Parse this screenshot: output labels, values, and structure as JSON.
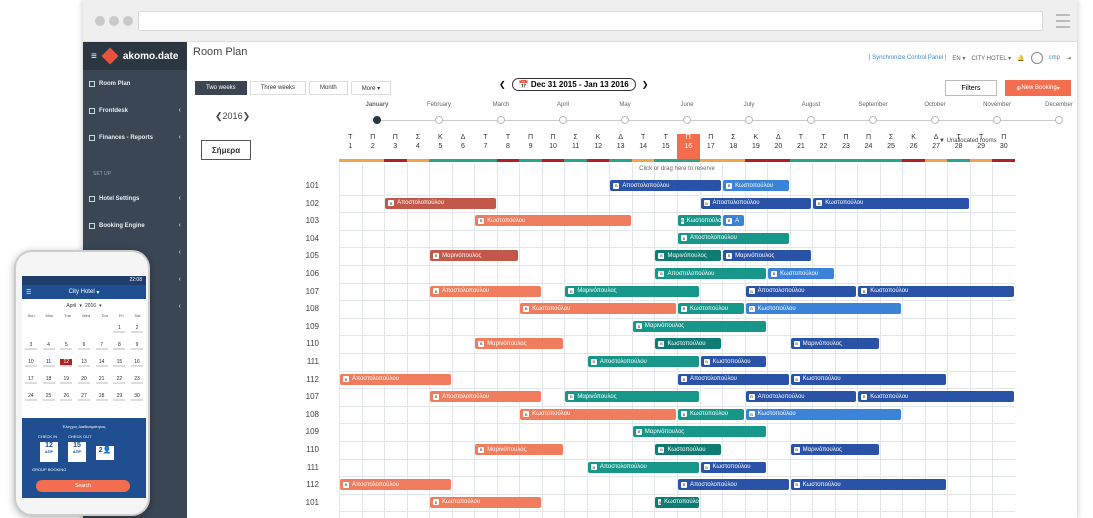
{
  "app": {
    "title": "Room Plan",
    "logo": "akomo.date"
  },
  "sidebar": {
    "items": [
      {
        "label": "Room Plan",
        "icon": "calendar-icon"
      },
      {
        "label": "Frontdesk",
        "icon": "desk-icon"
      },
      {
        "label": "Finances - Reports",
        "icon": "chart-icon"
      }
    ],
    "setup_label": "SET UP",
    "setup_items": [
      {
        "label": "Hotel Settings",
        "icon": "gear-icon"
      },
      {
        "label": "Booking Engine",
        "icon": "cloud-icon"
      },
      {
        "label": "",
        "icon": "policy-icon"
      },
      {
        "label": "",
        "icon": "list-icon"
      },
      {
        "label": "",
        "icon": "tag-icon"
      }
    ]
  },
  "header": {
    "sync": "| Synchronize Control Panel |",
    "lang": "EN",
    "hotel": "CITY HOTEL",
    "user": "cmp"
  },
  "toolbar": {
    "tabs": [
      "Two weeks",
      "Three weeks",
      "Month",
      "More"
    ],
    "active_tab": 0,
    "date_range": "Dec 31 2015 - Jan 13 2016",
    "filters": "Filters",
    "new_booking": "New Booking"
  },
  "timeline": {
    "year": "2016",
    "months": [
      "January",
      "February",
      "March",
      "April",
      "May",
      "June",
      "July",
      "August",
      "September",
      "October",
      "November",
      "December"
    ]
  },
  "grid": {
    "today_button": "Σήμερα",
    "unallocated": "Unallocated rooms",
    "hint": "Click or drag here to reserve",
    "days": [
      {
        "w": "Τ",
        "d": "1",
        "c": "#f0a44b"
      },
      {
        "w": "Π",
        "d": "2",
        "c": "#f0a44b"
      },
      {
        "w": "Π",
        "d": "3",
        "c": "#b41f26"
      },
      {
        "w": "Σ",
        "d": "4",
        "c": "#f0a44b"
      },
      {
        "w": "Κ",
        "d": "5",
        "c": "#2aa58a"
      },
      {
        "w": "Δ",
        "d": "6",
        "c": "#2aa58a"
      },
      {
        "w": "Τ",
        "d": "7",
        "c": "#2aa58a"
      },
      {
        "w": "Τ",
        "d": "8",
        "c": "#b41f26"
      },
      {
        "w": "Π",
        "d": "9",
        "c": "#2aa58a"
      },
      {
        "w": "Π",
        "d": "10",
        "c": "#b41f26"
      },
      {
        "w": "Σ",
        "d": "11",
        "c": "#2aa58a"
      },
      {
        "w": "Κ",
        "d": "12",
        "c": "#b41f26"
      },
      {
        "w": "Δ",
        "d": "13",
        "c": "#2aa58a"
      },
      {
        "w": "Τ",
        "d": "14",
        "c": "#f0a44b"
      },
      {
        "w": "Τ",
        "d": "15",
        "c": "#2aa58a"
      },
      {
        "w": "Π",
        "d": "16",
        "c": "#2aa58a"
      },
      {
        "w": "Π",
        "d": "17",
        "c": "#f0a44b"
      },
      {
        "w": "Σ",
        "d": "18",
        "c": "#f0a44b"
      },
      {
        "w": "Κ",
        "d": "19",
        "c": "#b41f26"
      },
      {
        "w": "Δ",
        "d": "20",
        "c": "#b41f26"
      },
      {
        "w": "Τ",
        "d": "21",
        "c": "#2aa58a"
      },
      {
        "w": "Τ",
        "d": "22",
        "c": "#2aa58a"
      },
      {
        "w": "Π",
        "d": "23",
        "c": "#2aa58a"
      },
      {
        "w": "Π",
        "d": "24",
        "c": "#2aa58a"
      },
      {
        "w": "Σ",
        "d": "25",
        "c": "#2aa58a"
      },
      {
        "w": "Κ",
        "d": "26",
        "c": "#b41f26"
      },
      {
        "w": "Δ",
        "d": "27",
        "c": "#f0a44b"
      },
      {
        "w": "Τ",
        "d": "28",
        "c": "#2aa58a"
      },
      {
        "w": "Τ",
        "d": "29",
        "c": "#f0a44b"
      },
      {
        "w": "Π",
        "d": "30",
        "c": "#b41f26"
      }
    ],
    "today_index": 15,
    "rooms": [
      "101",
      "102",
      "103",
      "104",
      "105",
      "106",
      "107",
      "108",
      "109",
      "110",
      "111",
      "112",
      "107",
      "108",
      "109",
      "110",
      "111",
      "112",
      "101"
    ],
    "colors": {
      "orange": "#f07d5e",
      "brown": "#c2584a",
      "teal": "#16978a",
      "navy": "#2a53a8",
      "blue": "#3b83d8",
      "darkteal": "#0f7c74"
    },
    "bookings": [
      [
        0,
        12,
        17,
        "navy",
        "Αποστολοπούλου"
      ],
      [
        0,
        17,
        20,
        "blue",
        "Κωστοπούλου"
      ],
      [
        1,
        2,
        7,
        "brown",
        "Αποστολοπούλου"
      ],
      [
        1,
        16,
        21,
        "navy",
        "Αποστολοπούλου"
      ],
      [
        1,
        21,
        28,
        "navy",
        "Κωστοπούλου"
      ],
      [
        2,
        6,
        13,
        "orange",
        "Κωστοπούλου"
      ],
      [
        2,
        15,
        17,
        "teal",
        "Κωστοπούλου"
      ],
      [
        2,
        17,
        18,
        "blue",
        "Α"
      ],
      [
        3,
        15,
        20,
        "teal",
        "Αποστολοπούλου"
      ],
      [
        4,
        4,
        8,
        "brown",
        "Μαρινόπουλος"
      ],
      [
        4,
        14,
        17,
        "darkteal",
        "Μαρινόπουλος"
      ],
      [
        4,
        17,
        21,
        "navy",
        "Μαρινόπουλος"
      ],
      [
        5,
        14,
        19,
        "teal",
        "Αποστολοπούλου"
      ],
      [
        5,
        19,
        22,
        "blue",
        "Κωστοπούλου"
      ],
      [
        6,
        4,
        9,
        "orange",
        "Αποστολοπούλου"
      ],
      [
        6,
        10,
        16,
        "teal",
        "Μαρινόπουλος"
      ],
      [
        6,
        18,
        23,
        "navy",
        "Αποστολοπούλου"
      ],
      [
        6,
        23,
        30,
        "navy",
        "Κωστοπούλου"
      ],
      [
        7,
        8,
        15,
        "orange",
        "Κωστοπούλου"
      ],
      [
        7,
        15,
        18,
        "teal",
        "Κωστοπούλου"
      ],
      [
        7,
        18,
        25,
        "blue",
        "Κωστοπούλου"
      ],
      [
        8,
        13,
        19,
        "teal",
        "Μαρινόπουλος"
      ],
      [
        9,
        6,
        10,
        "orange",
        "Μαρινόπουλος"
      ],
      [
        9,
        14,
        17,
        "darkteal",
        "Κωστοπούλου"
      ],
      [
        9,
        20,
        24,
        "navy",
        "Μαρινόπουλος"
      ],
      [
        10,
        11,
        16,
        "teal",
        "Αποστολοπούλου"
      ],
      [
        10,
        16,
        19,
        "navy",
        "Κωστοπούλου"
      ],
      [
        11,
        0,
        5,
        "orange",
        "Αποστολοπούλου"
      ],
      [
        11,
        15,
        20,
        "navy",
        "Αποστολοπούλου"
      ],
      [
        11,
        20,
        27,
        "navy",
        "Κωστοπούλου"
      ],
      [
        12,
        4,
        9,
        "orange",
        "Αποστολοπούλου"
      ],
      [
        12,
        10,
        16,
        "teal",
        "Μαρινόπουλος"
      ],
      [
        12,
        18,
        23,
        "navy",
        "Αποστολοπούλου"
      ],
      [
        12,
        23,
        30,
        "navy",
        "Κωστοπούλου"
      ],
      [
        13,
        8,
        15,
        "orange",
        "Κωστοπούλου"
      ],
      [
        13,
        15,
        18,
        "teal",
        "Κωστοπούλου"
      ],
      [
        13,
        18,
        25,
        "blue",
        "Κωστοπούλου"
      ],
      [
        14,
        13,
        19,
        "teal",
        "Μαρινόπουλος"
      ],
      [
        15,
        6,
        10,
        "orange",
        "Μαρινόπουλος"
      ],
      [
        15,
        14,
        17,
        "darkteal",
        "Κωστοπούλου"
      ],
      [
        15,
        20,
        24,
        "navy",
        "Μαρινόπουλος"
      ],
      [
        16,
        11,
        16,
        "teal",
        "Αποστολοπούλου"
      ],
      [
        16,
        16,
        19,
        "navy",
        "Κωστοπούλου"
      ],
      [
        17,
        0,
        5,
        "orange",
        "Αποστολοπούλου"
      ],
      [
        17,
        15,
        20,
        "navy",
        "Αποστολοπούλου"
      ],
      [
        17,
        20,
        27,
        "navy",
        "Κωστοπούλου"
      ],
      [
        18,
        4,
        9,
        "orange",
        "Κωστοπούλου"
      ],
      [
        18,
        14,
        16,
        "darkteal",
        "Κωστοπούλου"
      ]
    ]
  },
  "phone": {
    "time": "22:08",
    "hotel": "City Hotel",
    "month": "April",
    "year": "2016",
    "weekdays": [
      "Sun",
      "Mon",
      "Tue",
      "Wed",
      "Thu",
      "Fri",
      "Sat"
    ],
    "weeks": [
      [
        "",
        "",
        "",
        "",
        "",
        "1",
        "2"
      ],
      [
        "3",
        "4",
        "5",
        "6",
        "7",
        "8",
        "9"
      ],
      [
        "10",
        "11",
        "12",
        "13",
        "14",
        "15",
        "16"
      ],
      [
        "17",
        "18",
        "19",
        "20",
        "21",
        "22",
        "23"
      ],
      [
        "24",
        "25",
        "26",
        "27",
        "28",
        "29",
        "30"
      ]
    ],
    "check_title": "Έλεγχος Διαθεσιμότητας",
    "checkin_label": "CHECK IN",
    "checkout_label": "CHECK OUT",
    "checkin_day": "12",
    "checkout_day": "15",
    "checkin_month": "ΑΠΡ",
    "checkout_month": "ΑΠΡ",
    "guests": "2",
    "group": "GROUP BOOKING",
    "search": "Search"
  }
}
